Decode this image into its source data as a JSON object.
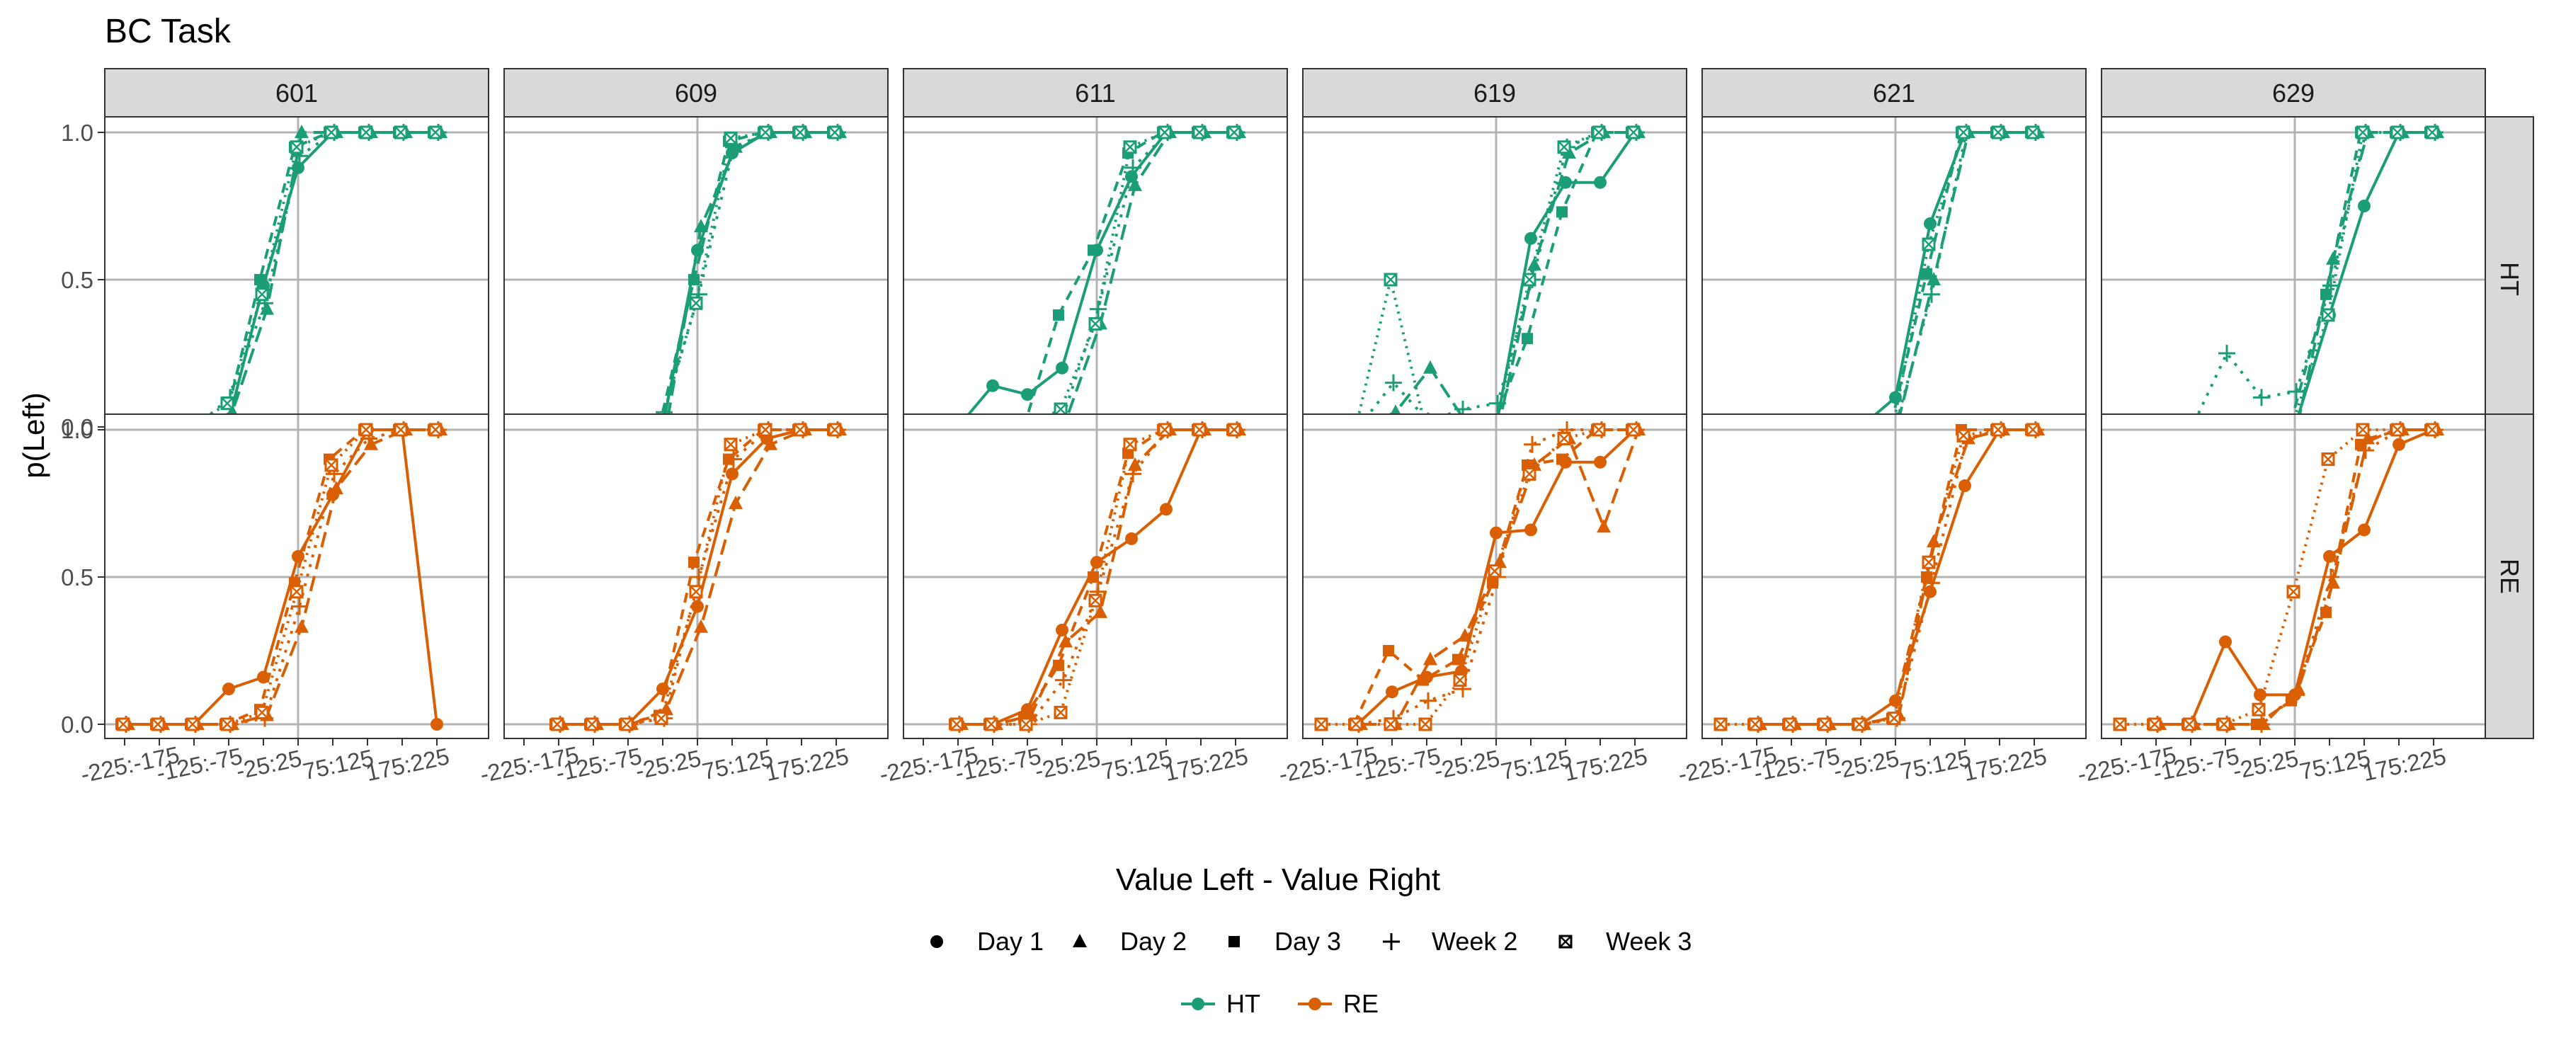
{
  "chart_data": {
    "type": "line",
    "title": "BC Task",
    "xlabel": "Value Left - Value Right",
    "ylabel": "p(Left)",
    "x_categories": [
      "-225:-175",
      "-175:-125",
      "-125:-75",
      "-75:-25",
      "-25:25",
      "25:75",
      "75:125",
      "125:175",
      "175:225",
      "225:275"
    ],
    "x_tick_labels": [
      "-225:-175",
      "-125:-75",
      "-25:25",
      "75:125",
      "175:225"
    ],
    "y_ticks": [
      "0.0",
      "0.5",
      "1.0"
    ],
    "ylim": [
      0,
      1
    ],
    "facet_columns": [
      "601",
      "609",
      "611",
      "619",
      "621",
      "629"
    ],
    "facet_rows": [
      "HT",
      "RE"
    ],
    "grid": true,
    "legend_position": "bottom",
    "legend_shape": {
      "title": "",
      "entries": [
        {
          "label": "Day 1",
          "shape": "circle"
        },
        {
          "label": "Day 2",
          "shape": "triangle"
        },
        {
          "label": "Day 3",
          "shape": "square"
        },
        {
          "label": "Week 2",
          "shape": "plus"
        },
        {
          "label": "Week 3",
          "shape": "boxed-x"
        }
      ]
    },
    "legend_color": {
      "title": "",
      "entries": [
        {
          "label": "HT",
          "color": "#1b9e77"
        },
        {
          "label": "RE",
          "color": "#d95f02"
        }
      ]
    },
    "panels": [
      {
        "subject": "601",
        "group": "HT",
        "series": [
          {
            "session": "Day 1",
            "values": [
              0,
              0,
              0,
              0.02,
              0.48,
              0.88,
              1,
              1,
              1,
              1
            ]
          },
          {
            "session": "Day 2",
            "values": [
              0,
              0,
              0,
              0.05,
              0.4,
              1,
              1,
              1,
              1,
              1
            ]
          },
          {
            "session": "Day 3",
            "values": [
              0,
              0,
              0,
              0.02,
              0.5,
              0.95,
              1,
              1,
              1,
              1
            ]
          },
          {
            "session": "Week 2",
            "values": [
              0,
              0,
              0,
              0.1,
              0.42,
              0.92,
              1,
              1,
              1,
              1
            ]
          },
          {
            "session": "Week 3",
            "values": [
              0,
              0,
              0,
              0.08,
              0.45,
              0.95,
              1,
              1,
              1,
              1
            ]
          }
        ]
      },
      {
        "subject": "609",
        "group": "HT",
        "series": [
          {
            "session": "Day 1",
            "values": [
              null,
              0,
              0,
              0,
              0,
              0.6,
              0.93,
              1,
              1,
              1
            ]
          },
          {
            "session": "Day 2",
            "values": [
              null,
              0,
              0,
              0,
              0,
              0.68,
              0.95,
              1,
              1,
              1
            ]
          },
          {
            "session": "Day 3",
            "values": [
              null,
              0,
              0,
              0,
              0,
              0.5,
              0.97,
              1,
              1,
              1
            ]
          },
          {
            "session": "Week 2",
            "values": [
              null,
              0,
              0,
              0,
              0.05,
              0.45,
              0.95,
              1,
              1,
              1
            ]
          },
          {
            "session": "Week 3",
            "values": [
              null,
              0,
              0,
              0,
              0.02,
              0.42,
              0.98,
              1,
              1,
              1
            ]
          }
        ]
      },
      {
        "subject": "611",
        "group": "HT",
        "series": [
          {
            "session": "Day 1",
            "values": [
              null,
              0,
              0.14,
              0.11,
              0.2,
              0.6,
              0.85,
              1,
              1,
              1
            ]
          },
          {
            "session": "Day 2",
            "values": [
              null,
              0,
              0,
              0,
              0.02,
              0.35,
              0.82,
              1,
              1,
              1
            ]
          },
          {
            "session": "Day 3",
            "values": [
              null,
              0,
              0,
              0,
              0.38,
              0.6,
              0.93,
              1,
              1,
              1
            ]
          },
          {
            "session": "Week 2",
            "values": [
              0,
              0,
              0,
              0,
              0.04,
              0.4,
              0.88,
              1,
              1,
              1
            ]
          },
          {
            "session": "Week 3",
            "values": [
              null,
              0,
              0,
              0,
              0.06,
              0.35,
              0.95,
              1,
              1,
              1
            ]
          }
        ]
      },
      {
        "subject": "619",
        "group": "HT",
        "series": [
          {
            "session": "Day 1",
            "values": [
              null,
              0,
              0,
              0,
              0,
              0,
              0.64,
              0.83,
              0.83,
              1
            ]
          },
          {
            "session": "Day 2",
            "values": [
              null,
              0,
              0.05,
              0.2,
              0.02,
              0.02,
              0.55,
              0.93,
              1,
              1
            ]
          },
          {
            "session": "Day 3",
            "values": [
              null,
              0,
              0,
              0,
              0,
              0,
              0.3,
              0.73,
              1,
              1
            ]
          },
          {
            "session": "Week 2",
            "values": [
              null,
              0,
              0.15,
              0.02,
              0.06,
              0.08,
              0.5,
              0.95,
              1,
              1
            ]
          },
          {
            "session": "Week 3",
            "values": [
              null,
              0,
              0.5,
              0,
              0,
              0,
              0.5,
              0.95,
              1,
              1
            ]
          }
        ]
      },
      {
        "subject": "621",
        "group": "HT",
        "series": [
          {
            "session": "Day 1",
            "values": [
              null,
              0,
              0,
              0,
              0,
              0.1,
              0.69,
              1,
              1,
              1
            ]
          },
          {
            "session": "Day 2",
            "values": [
              null,
              0,
              0,
              0,
              0,
              0.03,
              0.5,
              1,
              1,
              1
            ]
          },
          {
            "session": "Day 3",
            "values": [
              null,
              0,
              0,
              0,
              0,
              0.02,
              0.52,
              1,
              1,
              1
            ]
          },
          {
            "session": "Week 2",
            "values": [
              null,
              0,
              0,
              0,
              0,
              0.02,
              0.45,
              1,
              1,
              1
            ]
          },
          {
            "session": "Week 3",
            "values": [
              null,
              0,
              0,
              0,
              0,
              0.02,
              0.62,
              1,
              1,
              1
            ]
          }
        ]
      },
      {
        "subject": "629",
        "group": "HT",
        "series": [
          {
            "session": "Day 1",
            "values": [
              null,
              0,
              0,
              0,
              0,
              0,
              0.38,
              0.75,
              1,
              1
            ]
          },
          {
            "session": "Day 2",
            "values": [
              null,
              0,
              0,
              0,
              0,
              0.02,
              0.57,
              1,
              1,
              1
            ]
          },
          {
            "session": "Day 3",
            "values": [
              null,
              0,
              0,
              0,
              0,
              0.02,
              0.45,
              1,
              1,
              1
            ]
          },
          {
            "session": "Week 2",
            "values": [
              null,
              0,
              0,
              0.25,
              0.1,
              0.12,
              0.48,
              1,
              1,
              1
            ]
          },
          {
            "session": "Week 3",
            "values": [
              null,
              0,
              0,
              0,
              0,
              0.02,
              0.38,
              1,
              1,
              1
            ]
          }
        ]
      },
      {
        "subject": "601",
        "group": "RE",
        "series": [
          {
            "session": "Day 1",
            "values": [
              0,
              0,
              0,
              0.12,
              0.16,
              0.57,
              0.78,
              1,
              1,
              0
            ]
          },
          {
            "session": "Day 2",
            "values": [
              0,
              0,
              0,
              0,
              0.03,
              0.33,
              0.8,
              0.95,
              1,
              1
            ]
          },
          {
            "session": "Day 3",
            "values": [
              0,
              0,
              0,
              0,
              0.05,
              0.48,
              0.9,
              1,
              1,
              1
            ]
          },
          {
            "session": "Week 2",
            "values": [
              0,
              0,
              0,
              0,
              0.02,
              0.4,
              0.85,
              0.97,
              1,
              1
            ]
          },
          {
            "session": "Week 3",
            "values": [
              0,
              0,
              0,
              0,
              0.04,
              0.45,
              0.88,
              1,
              1,
              1
            ]
          }
        ]
      },
      {
        "subject": "609",
        "group": "RE",
        "series": [
          {
            "session": "Day 1",
            "values": [
              null,
              0,
              0,
              0,
              0.12,
              0.4,
              0.85,
              0.97,
              1,
              1
            ]
          },
          {
            "session": "Day 2",
            "values": [
              null,
              0,
              0,
              0,
              0.05,
              0.33,
              0.75,
              0.95,
              1,
              1
            ]
          },
          {
            "session": "Day 3",
            "values": [
              null,
              0,
              0,
              0,
              0.03,
              0.55,
              0.9,
              1,
              1,
              1
            ]
          },
          {
            "session": "Week 2",
            "values": [
              null,
              0,
              0,
              0,
              0.02,
              0.5,
              0.9,
              1,
              1,
              1
            ]
          },
          {
            "session": "Week 3",
            "values": [
              null,
              0,
              0,
              0,
              0.02,
              0.45,
              0.95,
              1,
              1,
              1
            ]
          }
        ]
      },
      {
        "subject": "611",
        "group": "RE",
        "series": [
          {
            "session": "Day 1",
            "values": [
              null,
              0,
              0,
              0.05,
              0.32,
              0.55,
              0.63,
              0.73,
              1,
              1
            ]
          },
          {
            "session": "Day 2",
            "values": [
              null,
              0,
              0,
              0.03,
              0.28,
              0.38,
              0.88,
              1,
              1,
              1
            ]
          },
          {
            "session": "Day 3",
            "values": [
              null,
              0,
              0,
              0.02,
              0.2,
              0.5,
              0.92,
              1,
              1,
              1
            ]
          },
          {
            "session": "Week 2",
            "values": [
              null,
              0,
              0,
              0,
              0.15,
              0.45,
              0.85,
              1,
              1,
              1
            ]
          },
          {
            "session": "Week 3",
            "values": [
              null,
              0,
              0,
              0,
              0.04,
              0.42,
              0.95,
              1,
              1,
              1
            ]
          }
        ]
      },
      {
        "subject": "619",
        "group": "RE",
        "series": [
          {
            "session": "Day 1",
            "values": [
              null,
              0,
              0.11,
              0.16,
              0.18,
              0.65,
              0.66,
              0.89,
              0.89,
              1
            ]
          },
          {
            "session": "Day 2",
            "values": [
              null,
              0,
              0,
              0.22,
              0.3,
              0.55,
              0.88,
              0.97,
              0.67,
              1
            ]
          },
          {
            "session": "Day 3",
            "values": [
              null,
              0,
              0.25,
              0.15,
              0.22,
              0.48,
              0.88,
              0.9,
              1,
              1
            ]
          },
          {
            "session": "Week 2",
            "values": [
              null,
              0,
              0.02,
              0.08,
              0.12,
              0.5,
              0.95,
              1,
              1,
              1
            ]
          },
          {
            "session": "Week 3",
            "values": [
              0,
              0,
              0,
              0,
              0.15,
              0.52,
              0.85,
              0.97,
              1,
              1
            ]
          }
        ]
      },
      {
        "subject": "621",
        "group": "RE",
        "series": [
          {
            "session": "Day 1",
            "values": [
              null,
              0,
              0,
              0,
              0,
              0.08,
              0.45,
              0.81,
              1,
              1
            ]
          },
          {
            "session": "Day 2",
            "values": [
              null,
              0,
              0,
              0,
              0,
              0.03,
              0.62,
              0.97,
              1,
              1
            ]
          },
          {
            "session": "Day 3",
            "values": [
              null,
              0,
              0,
              0,
              0,
              0.02,
              0.5,
              1,
              1,
              1
            ]
          },
          {
            "session": "Week 2",
            "values": [
              null,
              0,
              0,
              0,
              0,
              0.02,
              0.48,
              0.97,
              1,
              1
            ]
          },
          {
            "session": "Week 3",
            "values": [
              0,
              0,
              0,
              0,
              0,
              0.02,
              0.55,
              0.98,
              1,
              1
            ]
          }
        ]
      },
      {
        "subject": "629",
        "group": "RE",
        "series": [
          {
            "session": "Day 1",
            "values": [
              null,
              0,
              0,
              0.28,
              0.1,
              0.1,
              0.57,
              0.66,
              0.95,
              1
            ]
          },
          {
            "session": "Day 2",
            "values": [
              null,
              0,
              0,
              0,
              0,
              0.12,
              0.48,
              0.97,
              1,
              1
            ]
          },
          {
            "session": "Day 3",
            "values": [
              null,
              0,
              0,
              0,
              0,
              0.08,
              0.38,
              0.95,
              1,
              1
            ]
          },
          {
            "session": "Week 2",
            "values": [
              null,
              0,
              0,
              0,
              0,
              0.1,
              0.5,
              0.93,
              1,
              1
            ]
          },
          {
            "session": "Week 3",
            "values": [
              0,
              0,
              0,
              0,
              0.05,
              0.45,
              0.9,
              1,
              1,
              1
            ]
          }
        ]
      }
    ]
  }
}
